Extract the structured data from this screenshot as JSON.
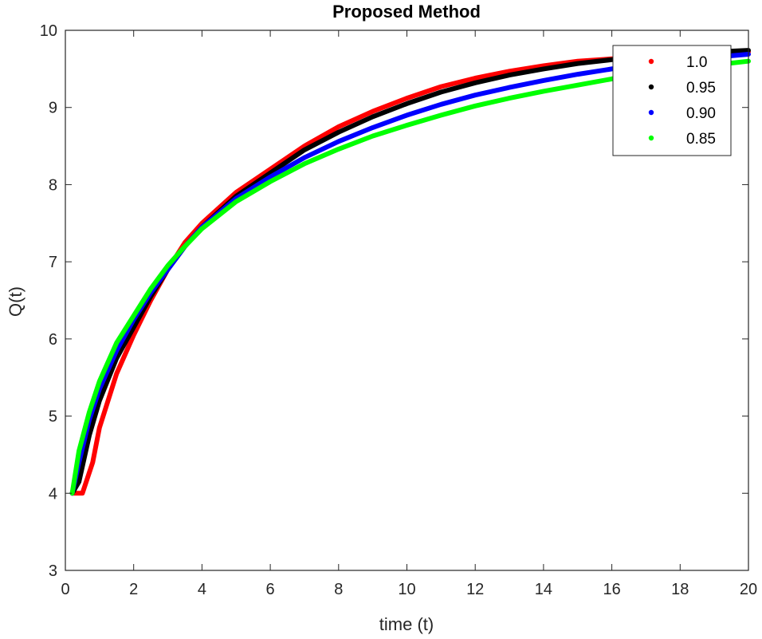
{
  "chart_data": {
    "type": "line",
    "title": "Proposed Method",
    "xlabel": "time (t)",
    "ylabel": "Q(t)",
    "xlim": [
      0,
      20
    ],
    "ylim": [
      3,
      10
    ],
    "xticks": [
      0,
      2,
      4,
      6,
      8,
      10,
      12,
      14,
      16,
      18,
      20
    ],
    "yticks": [
      3,
      4,
      5,
      6,
      7,
      8,
      9,
      10
    ],
    "grid": false,
    "legend_position": "top-right",
    "series": [
      {
        "name": "1.0",
        "color": "#ff0000",
        "x": [
          0.2,
          0.5,
          0.8,
          1,
          1.5,
          2,
          2.5,
          3,
          3.5,
          4,
          5,
          6,
          7,
          8,
          9,
          10,
          11,
          12,
          13,
          14,
          15,
          16,
          17,
          18,
          19,
          20
        ],
        "y": [
          4.0,
          4.0,
          4.4,
          4.85,
          5.55,
          6.05,
          6.5,
          6.9,
          7.25,
          7.5,
          7.9,
          8.2,
          8.5,
          8.75,
          8.95,
          9.12,
          9.27,
          9.38,
          9.47,
          9.54,
          9.6,
          9.63,
          9.66,
          9.68,
          9.7,
          9.72
        ]
      },
      {
        "name": "0.95",
        "color": "#000000",
        "x": [
          0.2,
          0.4,
          0.7,
          1,
          1.5,
          2,
          2.5,
          3,
          3.5,
          4,
          5,
          6,
          7,
          8,
          9,
          10,
          11,
          12,
          13,
          14,
          15,
          16,
          17,
          18,
          19,
          20
        ],
        "y": [
          4.0,
          4.15,
          4.75,
          5.2,
          5.75,
          6.15,
          6.55,
          6.9,
          7.2,
          7.45,
          7.85,
          8.15,
          8.45,
          8.68,
          8.88,
          9.05,
          9.2,
          9.32,
          9.42,
          9.5,
          9.57,
          9.62,
          9.66,
          9.69,
          9.72,
          9.74
        ]
      },
      {
        "name": "0.90",
        "color": "#0000ff",
        "x": [
          0.2,
          0.4,
          0.7,
          1,
          1.5,
          2,
          2.5,
          3,
          3.5,
          4,
          5,
          6,
          7,
          8,
          9,
          10,
          11,
          12,
          13,
          14,
          15,
          16,
          17,
          18,
          19,
          20
        ],
        "y": [
          4.0,
          4.4,
          4.95,
          5.35,
          5.85,
          6.25,
          6.6,
          6.9,
          7.2,
          7.45,
          7.82,
          8.1,
          8.35,
          8.56,
          8.74,
          8.9,
          9.04,
          9.16,
          9.26,
          9.35,
          9.43,
          9.5,
          9.56,
          9.61,
          9.65,
          9.69
        ]
      },
      {
        "name": "0.85",
        "color": "#00ff00",
        "x": [
          0.2,
          0.4,
          0.7,
          1,
          1.5,
          2,
          2.5,
          3,
          3.5,
          4,
          5,
          6,
          7,
          8,
          9,
          10,
          11,
          12,
          13,
          14,
          15,
          16,
          17,
          18,
          19,
          20
        ],
        "y": [
          4.0,
          4.55,
          5.05,
          5.45,
          5.95,
          6.3,
          6.65,
          6.95,
          7.2,
          7.43,
          7.78,
          8.04,
          8.27,
          8.46,
          8.63,
          8.77,
          8.9,
          9.02,
          9.12,
          9.21,
          9.29,
          9.37,
          9.44,
          9.5,
          9.55,
          9.6
        ]
      }
    ]
  }
}
